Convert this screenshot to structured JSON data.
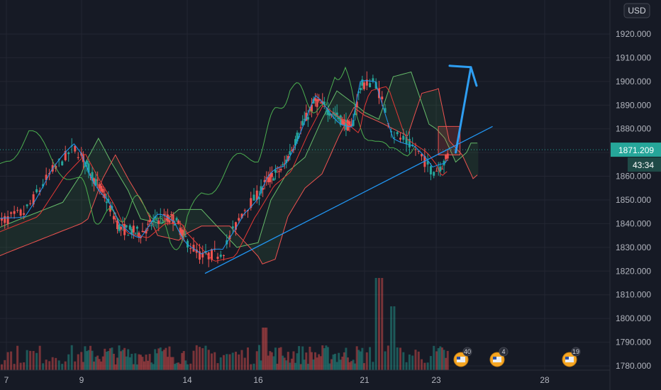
{
  "chart_data": {
    "type": "candlestick",
    "currency": "USD",
    "price_axis": {
      "ticks": [
        "1920.000",
        "1910.000",
        "1900.000",
        "1890.000",
        "1880.000",
        "1870.000",
        "1860.000",
        "1850.000",
        "1840.000",
        "1830.000",
        "1820.000",
        "1810.000",
        "1800.000",
        "1790.000",
        "1780.000"
      ],
      "range": [
        1778,
        1935
      ]
    },
    "time_axis": {
      "ticks": [
        "7",
        "9",
        "14",
        "16",
        "21",
        "23",
        "28"
      ]
    },
    "last_price": "1871.209",
    "countdown": "43:34",
    "event_badges": [
      {
        "label": "40"
      },
      {
        "label": "4"
      },
      {
        "label": "19"
      }
    ],
    "trendline": {
      "from": {
        "day": 14.5,
        "price": 1819
      },
      "to": {
        "day": 25.6,
        "price": 1881
      }
    },
    "arrow": {
      "from": {
        "day": 23.9,
        "price": 1870
      },
      "to": {
        "day": 24.6,
        "price": 1906
      }
    },
    "resistance_box": {
      "from_day": 23.1,
      "to_day": 24.1,
      "top": 1881,
      "bottom": 1869
    },
    "grid": true,
    "colors": {
      "up": "#26a69a",
      "down": "#ef5350",
      "trendline": "#2196f3",
      "arrow": "#2e9ef2",
      "price_label": "#26a69a",
      "spanA": "#66bb6a",
      "spanB": "#ef5350",
      "chikou": "#4caf50"
    }
  }
}
